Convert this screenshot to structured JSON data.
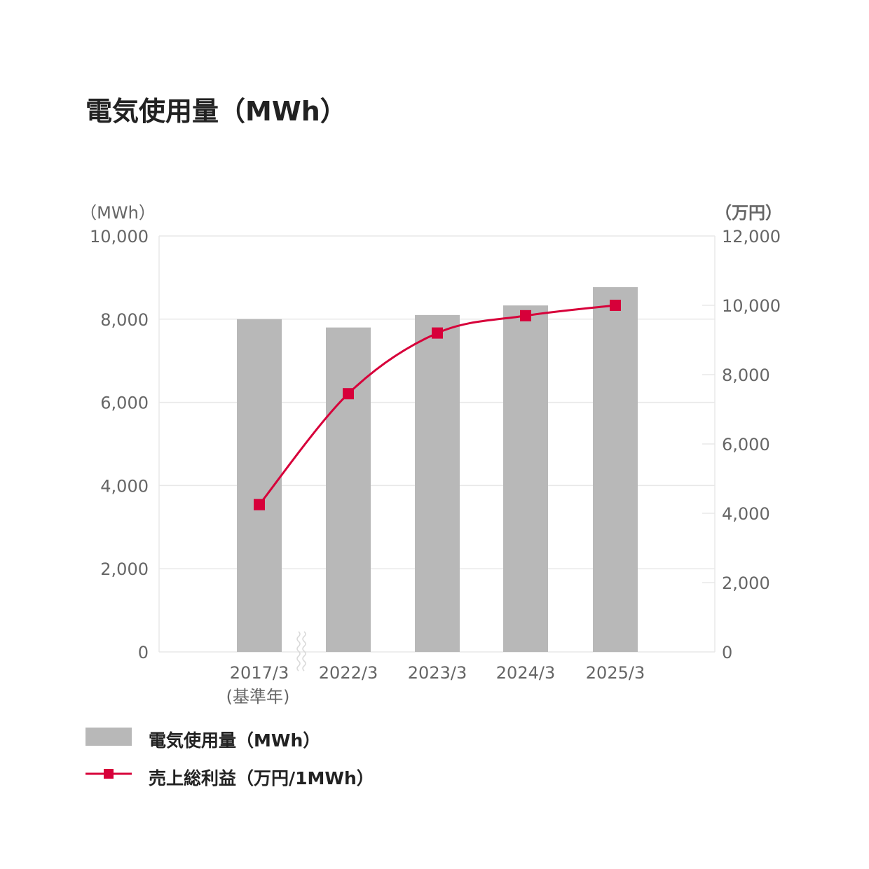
{
  "title": "電気使用量（MWh）",
  "chart_data": {
    "type": "bar",
    "categories": [
      "2017/3",
      "2022/3",
      "2023/3",
      "2024/3",
      "2025/3"
    ],
    "category_sublabels": [
      "(基準年)",
      "",
      "",
      "",
      ""
    ],
    "series": [
      {
        "name": "電気使用量（MWh）",
        "type": "bar",
        "axis": "left",
        "values": [
          8000,
          7800,
          8100,
          8330,
          8770
        ],
        "color": "#b8b8b8"
      },
      {
        "name": "売上総利益（万円/1MWh）",
        "type": "line",
        "axis": "right",
        "values": [
          4250,
          7450,
          9200,
          9700,
          10000
        ],
        "color": "#d7003a"
      }
    ],
    "y_left": {
      "unit": "（MWh）",
      "min": 0,
      "max": 10000,
      "ticks": [
        "0",
        "2,000",
        "4,000",
        "6,000",
        "8,000",
        "10,000"
      ]
    },
    "y_right": {
      "unit": "（万円）",
      "min": 0,
      "max": 12000,
      "ticks": [
        "0",
        "2,000",
        "4,000",
        "6,000",
        "8,000",
        "10,000",
        "12,000"
      ]
    },
    "grid": true,
    "axis_break_between": [
      "2017/3",
      "2022/3"
    ],
    "legend_position": "bottom-left"
  },
  "colors": {
    "bar": "#b8b8b8",
    "line": "#d7003a",
    "grid": "#e8e8e8",
    "tick_text": "#666666"
  }
}
